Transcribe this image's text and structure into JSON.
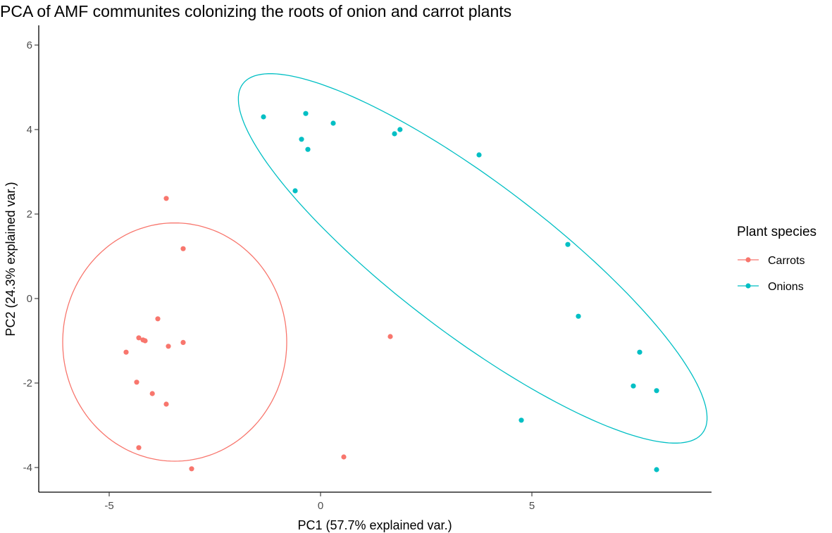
{
  "chart_data": {
    "type": "scatter",
    "title": "PCA of AMF communites colonizing the roots of onion and carrot plants",
    "xlabel": "PC1 (57.7% explained var.)",
    "ylabel": "PC2 (24.3% explained var.)",
    "xlim": [
      -6.6,
      9.2
    ],
    "ylim": [
      -4.6,
      6.5
    ],
    "xticks": [
      -5,
      0,
      5
    ],
    "xtick_labels": [
      "-5",
      "0",
      "5"
    ],
    "yticks": [
      -4,
      -2,
      0,
      2,
      4,
      6
    ],
    "ytick_labels": [
      "-4",
      "-2",
      "0",
      "2",
      "4",
      "6"
    ],
    "grid": false,
    "legend": {
      "title": "Plant species",
      "position": "right"
    },
    "series": [
      {
        "name": "Carrots",
        "color": "#F8766D",
        "points": [
          [
            -3.65,
            2.37
          ],
          [
            -3.25,
            1.18
          ],
          [
            -3.85,
            -0.48
          ],
          [
            -4.3,
            -0.93
          ],
          [
            -4.2,
            -0.98
          ],
          [
            -4.15,
            -1.0
          ],
          [
            -3.25,
            -1.04
          ],
          [
            -3.6,
            -1.13
          ],
          [
            -4.6,
            -1.27
          ],
          [
            -4.35,
            -1.98
          ],
          [
            -3.98,
            -2.25
          ],
          [
            -3.65,
            -2.5
          ],
          [
            -4.3,
            -3.53
          ],
          [
            -3.05,
            -4.03
          ],
          [
            0.55,
            -3.75
          ],
          [
            1.65,
            -0.9
          ]
        ],
        "ellipse": {
          "center": [
            -3.45,
            -1.03
          ],
          "semi_axes": [
            2.65,
            2.82
          ],
          "angle_deg": 0
        }
      },
      {
        "name": "Onions",
        "color": "#00BFC4",
        "points": [
          [
            -1.35,
            4.3
          ],
          [
            -0.35,
            4.38
          ],
          [
            0.3,
            4.15
          ],
          [
            -0.45,
            3.77
          ],
          [
            -0.3,
            3.53
          ],
          [
            -0.6,
            2.55
          ],
          [
            1.75,
            3.9
          ],
          [
            1.88,
            4.0
          ],
          [
            3.75,
            3.4
          ],
          [
            5.85,
            1.28
          ],
          [
            6.1,
            -0.42
          ],
          [
            7.55,
            -1.27
          ],
          [
            7.4,
            -2.07
          ],
          [
            7.95,
            -2.18
          ],
          [
            4.75,
            -2.88
          ],
          [
            7.95,
            -4.05
          ]
        ],
        "ellipse": {
          "center": [
            3.6,
            0.95
          ],
          "semi_axes": [
            6.83,
            1.79
          ],
          "angle_deg": -37.24
        }
      }
    ]
  }
}
